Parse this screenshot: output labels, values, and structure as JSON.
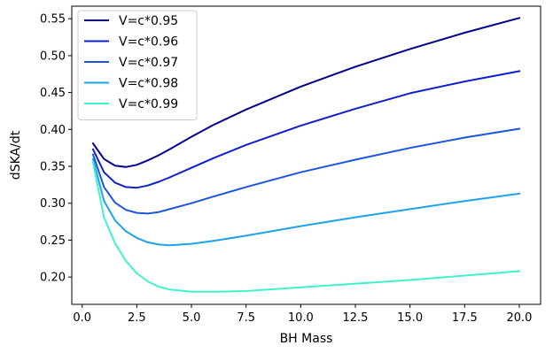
{
  "chart_data": {
    "type": "line",
    "title": "",
    "xlabel": "BH Mass",
    "ylabel": "dSKA/dt",
    "xlim": [
      -0.475,
      20.975
    ],
    "ylim": [
      0.163,
      0.567
    ],
    "xticks": [
      0.0,
      2.5,
      5.0,
      7.5,
      10.0,
      12.5,
      15.0,
      17.5,
      20.0
    ],
    "xtick_labels": [
      "0.0",
      "2.5",
      "5.0",
      "7.5",
      "10.0",
      "12.5",
      "15.0",
      "17.5",
      "20.0"
    ],
    "yticks": [
      0.2,
      0.25,
      0.3,
      0.35,
      0.4,
      0.45,
      0.5,
      0.55
    ],
    "ytick_labels": [
      "0.20",
      "0.25",
      "0.30",
      "0.35",
      "0.40",
      "0.45",
      "0.50",
      "0.55"
    ],
    "grid": false,
    "legend_position": "top-left",
    "x": [
      0.5,
      1.0,
      1.5,
      2.0,
      2.5,
      3.0,
      3.5,
      4.0,
      5.0,
      6.0,
      7.5,
      10.0,
      12.5,
      15.0,
      17.5,
      20.0
    ],
    "series": [
      {
        "name": "V=c*0.95",
        "color": "#00008b",
        "values": [
          0.381,
          0.36,
          0.351,
          0.349,
          0.352,
          0.358,
          0.365,
          0.373,
          0.39,
          0.406,
          0.427,
          0.458,
          0.485,
          0.509,
          0.531,
          0.551
        ]
      },
      {
        "name": "V=c*0.96",
        "color": "#0f1fcf",
        "values": [
          0.373,
          0.342,
          0.328,
          0.322,
          0.321,
          0.324,
          0.329,
          0.335,
          0.348,
          0.361,
          0.379,
          0.405,
          0.428,
          0.449,
          0.465,
          0.479
        ]
      },
      {
        "name": "V=c*0.97",
        "color": "#1a56e0",
        "values": [
          0.366,
          0.322,
          0.301,
          0.291,
          0.287,
          0.286,
          0.288,
          0.292,
          0.3,
          0.309,
          0.322,
          0.342,
          0.359,
          0.375,
          0.389,
          0.401
        ]
      },
      {
        "name": "V=c*0.98",
        "color": "#1ea2ec",
        "values": [
          0.36,
          0.303,
          0.277,
          0.262,
          0.253,
          0.247,
          0.244,
          0.243,
          0.245,
          0.249,
          0.256,
          0.269,
          0.281,
          0.292,
          0.303,
          0.313
        ]
      },
      {
        "name": "V=c*0.99",
        "color": "#3ff4cc",
        "values": [
          0.355,
          0.281,
          0.246,
          0.222,
          0.205,
          0.194,
          0.187,
          0.183,
          0.18,
          0.18,
          0.181,
          0.186,
          0.191,
          0.196,
          0.202,
          0.208
        ]
      }
    ]
  }
}
